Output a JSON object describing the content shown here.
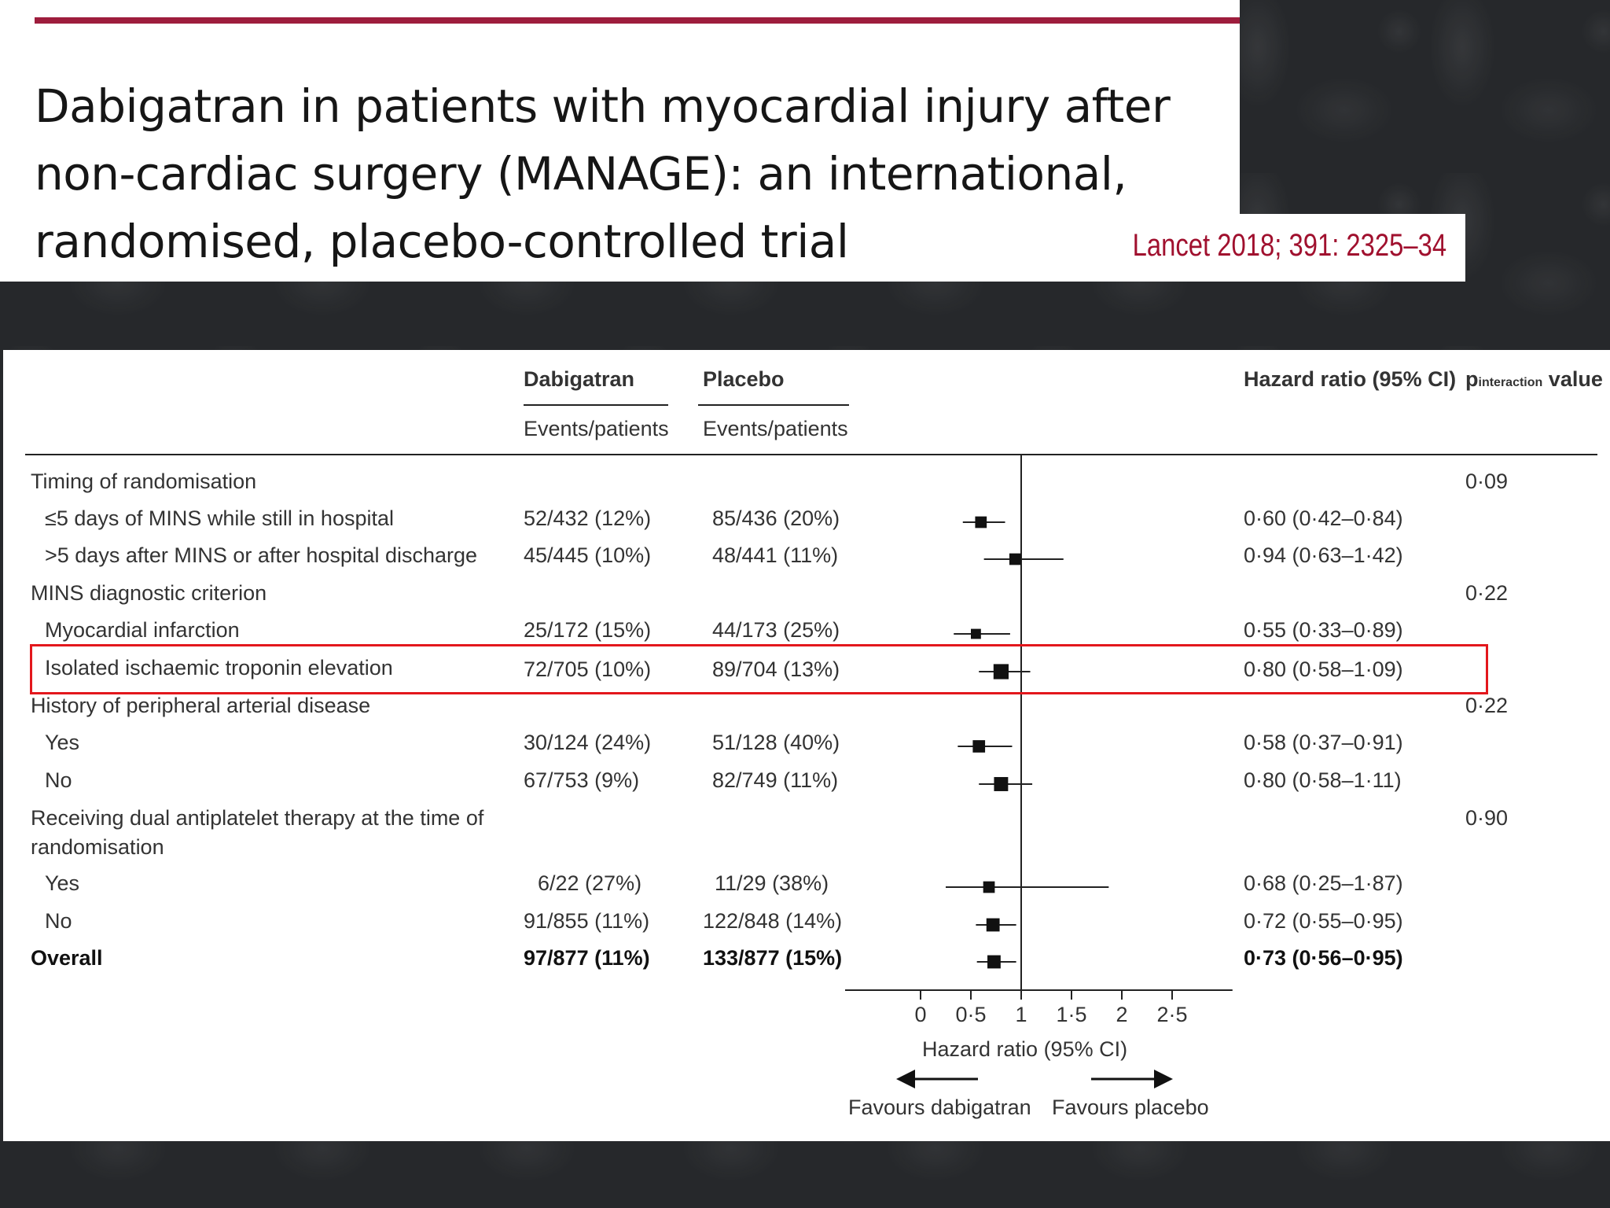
{
  "slide": {
    "title": "Dabigatran in patients with myocardial injury after non-cardiac surgery (MANAGE): an international, randomised, placebo-controlled trial",
    "citation": "Lancet 2018; 391: 2325–34",
    "accent_color": "#9e1d3d",
    "highlight_color": "#e3171c"
  },
  "table": {
    "col_dabigatran": "Dabigatran",
    "col_placebo": "Placebo",
    "col_events": "Events/patients",
    "col_hr": "Hazard ratio (95% CI)",
    "col_p_main": "p",
    "col_p_sub": "interaction",
    "col_p_tail": " value",
    "rows": [
      {
        "label": "Timing of randomisation",
        "p": "0·09"
      },
      {
        "label": "≤5 days of MINS while still in hospital",
        "dab": "52/432 (12%)",
        "pla": "85/436 (20%)",
        "hr_text": "0·60 (0·42–0·84)"
      },
      {
        "label": ">5 days after MINS or after hospital discharge",
        "dab": "45/445 (10%)",
        "pla": "48/441 (11%)",
        "hr_text": "0·94 (0·63–1·42)"
      },
      {
        "label": "MINS diagnostic criterion",
        "p": "0·22"
      },
      {
        "label": "Myocardial infarction",
        "dab": "25/172 (15%)",
        "pla": "44/173 (25%)",
        "hr_text": "0·55 (0·33–0·89)"
      },
      {
        "label": "Isolated ischaemic troponin elevation",
        "dab": "72/705 (10%)",
        "pla": "89/704 (13%)",
        "hr_text": "0·80 (0·58–1·09)"
      },
      {
        "label": "History of peripheral arterial disease",
        "p": "0·22"
      },
      {
        "label": "Yes",
        "dab": "30/124 (24%)",
        "pla": "51/128 (40%)",
        "hr_text": "0·58 (0·37–0·91)"
      },
      {
        "label": "No",
        "dab": "67/753 (9%)",
        "pla": "82/749 (11%)",
        "hr_text": "0·80 (0·58–1·11)"
      },
      {
        "label": "Receiving dual antiplatelet therapy at the time of",
        "label2": "randomisation",
        "p": "0·90"
      },
      {
        "label": "Yes",
        "dab": "6/22 (27%)",
        "pla": "11/29 (38%)",
        "hr_text": "0·68 (0·25–1·87)"
      },
      {
        "label": "No",
        "dab": "91/855 (11%)",
        "pla": "122/848 (14%)",
        "hr_text": "0·72 (0·55–0·95)"
      },
      {
        "label": "Overall",
        "dab": "97/877 (11%)",
        "pla": "133/877 (15%)",
        "hr_text": "0·73 (0·56–0·95)"
      }
    ]
  },
  "chart_data": {
    "type": "forest",
    "xlabel": "Hazard ratio (95% CI)",
    "favours_left": "Favours dabigatran",
    "favours_right": "Favours placebo",
    "reference_line": 1,
    "xlim": [
      -0.75,
      3.1
    ],
    "ticks": [
      0,
      0.5,
      1,
      1.5,
      2,
      2.5
    ],
    "tick_labels": [
      "0",
      "0·5",
      "1",
      "1·5",
      "2",
      "2·5"
    ],
    "estimates": [
      {
        "subgroup": "≤5 days of MINS while still in hospital",
        "hr": 0.6,
        "lo": 0.42,
        "hi": 0.84,
        "weight": 0.42
      },
      {
        "subgroup": ">5 days after MINS or after hospital discharge",
        "hr": 0.94,
        "lo": 0.63,
        "hi": 1.42,
        "weight": 0.42
      },
      {
        "subgroup": "Myocardial infarction",
        "hr": 0.55,
        "lo": 0.33,
        "hi": 0.89,
        "weight": 0.3
      },
      {
        "subgroup": "Isolated ischaemic troponin elevation",
        "hr": 0.8,
        "lo": 0.58,
        "hi": 1.09,
        "weight": 0.7
      },
      {
        "subgroup": "History of peripheral arterial disease: Yes",
        "hr": 0.58,
        "lo": 0.37,
        "hi": 0.91,
        "weight": 0.48
      },
      {
        "subgroup": "History of peripheral arterial disease: No",
        "hr": 0.8,
        "lo": 0.58,
        "hi": 1.11,
        "weight": 0.62
      },
      {
        "subgroup": "Dual antiplatelet therapy: Yes",
        "hr": 0.68,
        "lo": 0.25,
        "hi": 1.87,
        "weight": 0.42
      },
      {
        "subgroup": "Dual antiplatelet therapy: No",
        "hr": 0.72,
        "lo": 0.55,
        "hi": 0.95,
        "weight": 0.55
      },
      {
        "subgroup": "Overall",
        "hr": 0.73,
        "lo": 0.56,
        "hi": 0.95,
        "weight": 0.55
      }
    ]
  }
}
